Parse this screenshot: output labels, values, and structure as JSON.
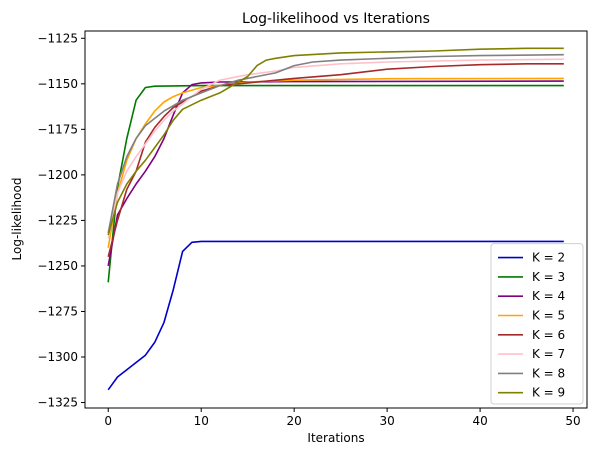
{
  "chart_data": {
    "type": "line",
    "title": "Log-likelihood vs Iterations",
    "xlabel": "Iterations",
    "ylabel": "Log-likelihood",
    "xlim": [
      -2.5,
      51.5
    ],
    "ylim": [
      -1328,
      -1121
    ],
    "xticks": [
      0,
      10,
      20,
      30,
      40,
      50
    ],
    "yticks": [
      -1325,
      -1300,
      -1275,
      -1250,
      -1225,
      -1200,
      -1175,
      -1150,
      -1125
    ],
    "ytick_labels": [
      "−1325",
      "−1300",
      "−1275",
      "−1250",
      "−1225",
      "−1200",
      "−1175",
      "−1150",
      "−1125"
    ],
    "legend_position": "lower right",
    "grid": false,
    "series": [
      {
        "name": "K = 2",
        "color": "#0000cc",
        "points": [
          [
            0,
            -1318
          ],
          [
            1,
            -1311
          ],
          [
            2,
            -1307
          ],
          [
            3,
            -1303
          ],
          [
            4,
            -1299
          ],
          [
            5,
            -1292
          ],
          [
            6,
            -1281
          ],
          [
            7,
            -1263
          ],
          [
            8,
            -1242
          ],
          [
            9,
            -1237
          ],
          [
            10,
            -1236.5
          ],
          [
            15,
            -1236.5
          ],
          [
            49,
            -1236.5
          ]
        ]
      },
      {
        "name": "K = 3",
        "color": "#007a00",
        "points": [
          [
            0,
            -1259
          ],
          [
            1,
            -1207
          ],
          [
            2,
            -1180
          ],
          [
            3,
            -1159
          ],
          [
            4,
            -1152
          ],
          [
            5,
            -1151.3
          ],
          [
            10,
            -1151
          ],
          [
            20,
            -1151
          ],
          [
            49,
            -1151
          ]
        ]
      },
      {
        "name": "K = 4",
        "color": "#800080",
        "points": [
          [
            0,
            -1250
          ],
          [
            1,
            -1222
          ],
          [
            2,
            -1213
          ],
          [
            3,
            -1205
          ],
          [
            4,
            -1198
          ],
          [
            5,
            -1190
          ],
          [
            6,
            -1180
          ],
          [
            7,
            -1167
          ],
          [
            8,
            -1155
          ],
          [
            9,
            -1150.5
          ],
          [
            10,
            -1149.5
          ],
          [
            12,
            -1149
          ],
          [
            20,
            -1148.8
          ],
          [
            49,
            -1148.5
          ]
        ]
      },
      {
        "name": "K = 5",
        "color": "#ffa500",
        "points": [
          [
            0,
            -1240
          ],
          [
            1,
            -1210
          ],
          [
            2,
            -1192
          ],
          [
            3,
            -1180
          ],
          [
            4,
            -1172
          ],
          [
            5,
            -1165
          ],
          [
            6,
            -1160
          ],
          [
            7,
            -1157
          ],
          [
            8,
            -1155
          ],
          [
            10,
            -1152
          ],
          [
            15,
            -1149
          ],
          [
            20,
            -1148
          ],
          [
            30,
            -1147.2
          ],
          [
            49,
            -1147
          ]
        ]
      },
      {
        "name": "K = 6",
        "color": "#a52a2a",
        "points": [
          [
            0,
            -1245
          ],
          [
            1,
            -1225
          ],
          [
            2,
            -1208
          ],
          [
            3,
            -1198
          ],
          [
            4,
            -1182
          ],
          [
            5,
            -1174
          ],
          [
            6,
            -1168
          ],
          [
            7,
            -1163
          ],
          [
            8,
            -1160
          ],
          [
            10,
            -1154
          ],
          [
            12,
            -1151
          ],
          [
            15,
            -1149.5
          ],
          [
            20,
            -1147
          ],
          [
            25,
            -1145
          ],
          [
            30,
            -1142
          ],
          [
            35,
            -1140.5
          ],
          [
            40,
            -1139.5
          ],
          [
            45,
            -1139
          ],
          [
            49,
            -1139
          ]
        ]
      },
      {
        "name": "K = 7",
        "color": "#ffc0cb",
        "points": [
          [
            0,
            -1235
          ],
          [
            1,
            -1210
          ],
          [
            2,
            -1198
          ],
          [
            3,
            -1190
          ],
          [
            4,
            -1183
          ],
          [
            5,
            -1176
          ],
          [
            6,
            -1170
          ],
          [
            7,
            -1165
          ],
          [
            8,
            -1161
          ],
          [
            10,
            -1153
          ],
          [
            12,
            -1148
          ],
          [
            15,
            -1145
          ],
          [
            18,
            -1143
          ],
          [
            20,
            -1141
          ],
          [
            25,
            -1139
          ],
          [
            30,
            -1138
          ],
          [
            40,
            -1137
          ],
          [
            49,
            -1136.5
          ]
        ]
      },
      {
        "name": "K = 8",
        "color": "#808080",
        "points": [
          [
            0,
            -1232
          ],
          [
            1,
            -1205
          ],
          [
            2,
            -1190
          ],
          [
            3,
            -1180
          ],
          [
            4,
            -1173
          ],
          [
            5,
            -1169
          ],
          [
            6,
            -1165
          ],
          [
            7,
            -1162
          ],
          [
            8,
            -1159
          ],
          [
            10,
            -1155
          ],
          [
            12,
            -1151
          ],
          [
            14,
            -1148
          ],
          [
            16,
            -1146
          ],
          [
            18,
            -1144
          ],
          [
            20,
            -1140
          ],
          [
            22,
            -1138
          ],
          [
            25,
            -1137
          ],
          [
            30,
            -1136
          ],
          [
            35,
            -1135
          ],
          [
            40,
            -1134.5
          ],
          [
            49,
            -1134
          ]
        ]
      },
      {
        "name": "K = 9",
        "color": "#808000",
        "points": [
          [
            0,
            -1233
          ],
          [
            1,
            -1215
          ],
          [
            2,
            -1205
          ],
          [
            3,
            -1198
          ],
          [
            4,
            -1192
          ],
          [
            5,
            -1185
          ],
          [
            6,
            -1178
          ],
          [
            7,
            -1170
          ],
          [
            8,
            -1164
          ],
          [
            10,
            -1159
          ],
          [
            12,
            -1155
          ],
          [
            14,
            -1149
          ],
          [
            15,
            -1146
          ],
          [
            16,
            -1140
          ],
          [
            17,
            -1137
          ],
          [
            18,
            -1136
          ],
          [
            20,
            -1134.5
          ],
          [
            25,
            -1133
          ],
          [
            30,
            -1132.5
          ],
          [
            35,
            -1132
          ],
          [
            40,
            -1131
          ],
          [
            45,
            -1130.5
          ],
          [
            49,
            -1130.5
          ]
        ]
      }
    ]
  }
}
